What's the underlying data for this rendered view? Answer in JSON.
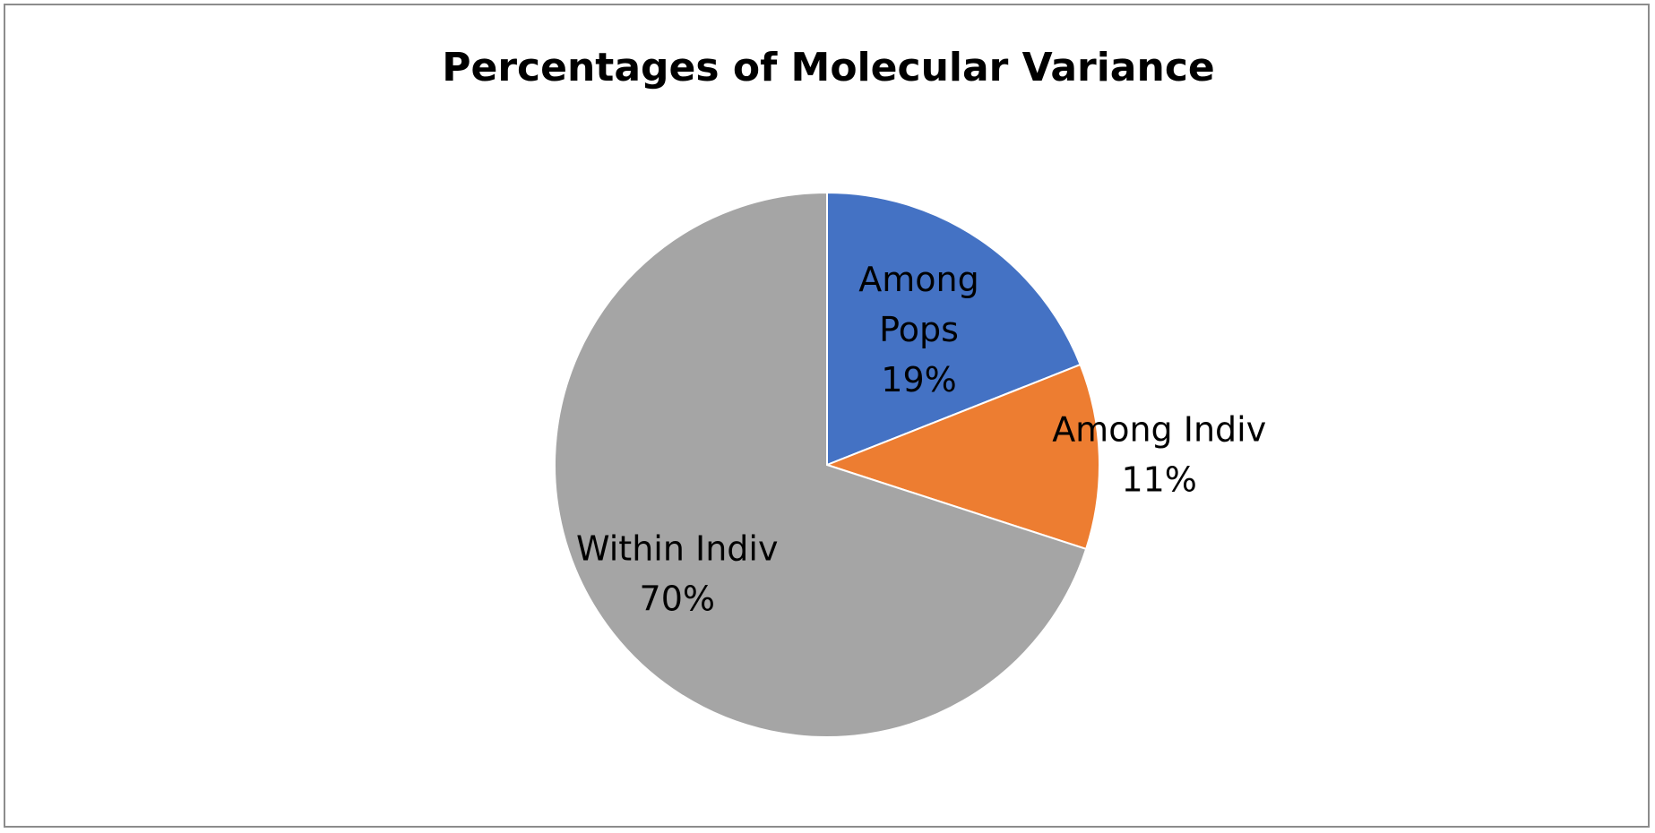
{
  "chart_data": {
    "type": "pie",
    "title": "Percentages of Molecular Variance",
    "slices": [
      {
        "name": "Among Pops",
        "label_lines": [
          "Among",
          "Pops"
        ],
        "value": 19,
        "value_label": "19%",
        "color": "#4472C4"
      },
      {
        "name": "Among Indiv",
        "label_lines": [
          "Among Indiv"
        ],
        "value": 11,
        "value_label": "11%",
        "color": "#ED7D31"
      },
      {
        "name": "Within Indiv",
        "label_lines": [
          "Within Indiv"
        ],
        "value": 70,
        "value_label": "70%",
        "color": "#A5A5A5"
      }
    ],
    "start_angle_deg": 0,
    "direction": "clockwise",
    "legend": "none"
  }
}
